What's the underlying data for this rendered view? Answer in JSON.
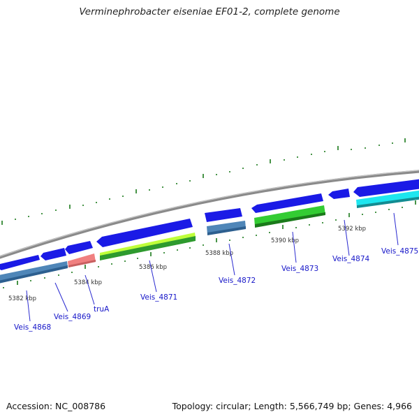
{
  "title": "Verminephrobacter eiseniae EF01-2, complete genome",
  "footer": {
    "accession": "Accession: NC_008786",
    "summary": "Topology: circular; Length: 5,566,749 bp; Genes: 4,966"
  },
  "kbp_labels": [
    "5382 kbp",
    "5384 kbp",
    "5386 kbp",
    "5388 kbp",
    "5390 kbp",
    "5392 kbp"
  ],
  "genes": [
    "Veis_4868",
    "Veis_4869",
    "truA",
    "Veis_4871",
    "Veis_4872",
    "Veis_4873",
    "Veis_4874",
    "Veis_4875"
  ],
  "colors": {
    "backbone": "#8a8a8a",
    "cds": "#1a1ae6",
    "steelblue": "#4f86b8",
    "salmon": "#f08080",
    "lightgreen": "#bfff3a",
    "green": "#33cc33",
    "cyan": "#1ee6ef",
    "tick": "#1a7a1a",
    "label": "#1515c8"
  }
}
